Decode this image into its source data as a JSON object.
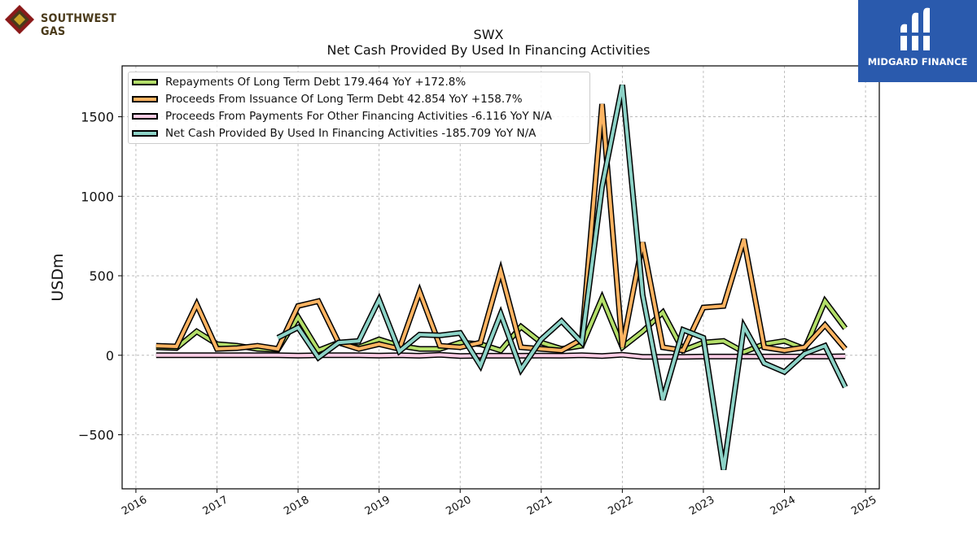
{
  "brand": {
    "left_name": "SOUTHWEST GAS",
    "right_name": "MIDGARD FINANCE"
  },
  "chart_data": {
    "type": "line",
    "title": "SWX",
    "subtitle": "Net Cash Provided By Used In Financing Activities",
    "xlabel": "",
    "ylabel": "USDm",
    "xlim": [
      2015.83,
      2025.17
    ],
    "ylim": [
      -840,
      1820
    ],
    "x_ticks": [
      2016,
      2017,
      2018,
      2019,
      2020,
      2021,
      2022,
      2023,
      2024,
      2025
    ],
    "x_tick_labels": [
      "2016",
      "2017",
      "2018",
      "2019",
      "2020",
      "2021",
      "2022",
      "2023",
      "2024",
      "2025"
    ],
    "y_ticks": [
      -500,
      0,
      500,
      1000,
      1500
    ],
    "y_tick_labels": [
      "−500",
      "0",
      "500",
      "1000",
      "1500"
    ],
    "grid": true,
    "legend_position": "top-left",
    "colors": {
      "repayments": "#b3de69",
      "proceeds_issuance": "#fdb462",
      "proceeds_other": "#fccde5",
      "net_cash": "#8dd3c7",
      "outline": "#000000",
      "grid": "#b0b0b0"
    },
    "series": [
      {
        "name": "Repayments Of Long Term Debt",
        "legend_label": "Repayments Of Long Term Debt  179.464 YoY +172.8%",
        "color_key": "repayments",
        "points": [
          [
            2016.25,
            50
          ],
          [
            2016.5,
            45
          ],
          [
            2016.75,
            150
          ],
          [
            2017.0,
            70
          ],
          [
            2017.25,
            60
          ],
          [
            2017.5,
            40
          ],
          [
            2017.75,
            35
          ],
          [
            2018.0,
            240
          ],
          [
            2018.25,
            30
          ],
          [
            2018.5,
            80
          ],
          [
            2018.75,
            50
          ],
          [
            2019.0,
            100
          ],
          [
            2019.25,
            60
          ],
          [
            2019.5,
            40
          ],
          [
            2019.75,
            40
          ],
          [
            2020.0,
            80
          ],
          [
            2020.25,
            70
          ],
          [
            2020.5,
            30
          ],
          [
            2020.75,
            180
          ],
          [
            2021.0,
            80
          ],
          [
            2021.25,
            40
          ],
          [
            2021.5,
            60
          ],
          [
            2021.75,
            360
          ],
          [
            2022.0,
            50
          ],
          [
            2022.25,
            150
          ],
          [
            2022.5,
            270
          ],
          [
            2022.75,
            30
          ],
          [
            2023.0,
            80
          ],
          [
            2023.25,
            90
          ],
          [
            2023.5,
            20
          ],
          [
            2023.75,
            70
          ],
          [
            2024.0,
            90
          ],
          [
            2024.25,
            40
          ],
          [
            2024.5,
            340
          ],
          [
            2024.75,
            170
          ]
        ]
      },
      {
        "name": "Proceeds From Issuance Of Long Term Debt",
        "legend_label": "Proceeds From Issuance Of Long Term Debt  42.854 YoY +158.7%",
        "color_key": "proceeds_issuance",
        "points": [
          [
            2016.25,
            60
          ],
          [
            2016.5,
            55
          ],
          [
            2016.75,
            320
          ],
          [
            2017.0,
            40
          ],
          [
            2017.25,
            45
          ],
          [
            2017.5,
            60
          ],
          [
            2017.75,
            40
          ],
          [
            2018.0,
            310
          ],
          [
            2018.25,
            340
          ],
          [
            2018.5,
            80
          ],
          [
            2018.75,
            40
          ],
          [
            2019.0,
            70
          ],
          [
            2019.25,
            40
          ],
          [
            2019.5,
            400
          ],
          [
            2019.75,
            60
          ],
          [
            2020.0,
            50
          ],
          [
            2020.25,
            80
          ],
          [
            2020.5,
            530
          ],
          [
            2020.75,
            50
          ],
          [
            2021.0,
            40
          ],
          [
            2021.25,
            30
          ],
          [
            2021.5,
            100
          ],
          [
            2021.75,
            1580
          ],
          [
            2022.0,
            50
          ],
          [
            2022.25,
            710
          ],
          [
            2022.5,
            50
          ],
          [
            2022.75,
            30
          ],
          [
            2023.0,
            300
          ],
          [
            2023.25,
            310
          ],
          [
            2023.5,
            730
          ],
          [
            2023.75,
            50
          ],
          [
            2024.0,
            30
          ],
          [
            2024.25,
            50
          ],
          [
            2024.5,
            190
          ],
          [
            2024.75,
            40
          ]
        ]
      },
      {
        "name": "Proceeds From Payments For Other Financing Activities",
        "legend_label": "Proceeds From Payments For Other Financing Activities  -6.116 YoY N/A",
        "color_key": "proceeds_other",
        "points": [
          [
            2016.25,
            0
          ],
          [
            2016.5,
            0
          ],
          [
            2016.75,
            0
          ],
          [
            2017.0,
            0
          ],
          [
            2017.25,
            0
          ],
          [
            2017.5,
            0
          ],
          [
            2017.75,
            0
          ],
          [
            2018.0,
            -2
          ],
          [
            2018.25,
            0
          ],
          [
            2018.5,
            0
          ],
          [
            2018.75,
            0
          ],
          [
            2019.0,
            -2
          ],
          [
            2019.25,
            0
          ],
          [
            2019.5,
            -3
          ],
          [
            2019.75,
            3
          ],
          [
            2020.0,
            -5
          ],
          [
            2020.25,
            -3
          ],
          [
            2020.5,
            -3
          ],
          [
            2020.75,
            -3
          ],
          [
            2021.0,
            -2
          ],
          [
            2021.25,
            -3
          ],
          [
            2021.5,
            0
          ],
          [
            2021.75,
            -5
          ],
          [
            2022.0,
            3
          ],
          [
            2022.25,
            -10
          ],
          [
            2022.5,
            -10
          ],
          [
            2022.75,
            -10
          ],
          [
            2023.0,
            -8
          ],
          [
            2023.25,
            -8
          ],
          [
            2023.5,
            -8
          ],
          [
            2023.75,
            -8
          ],
          [
            2024.0,
            -8
          ],
          [
            2024.25,
            -8
          ],
          [
            2024.5,
            -8
          ],
          [
            2024.75,
            -6
          ]
        ]
      },
      {
        "name": "Net Cash Provided By Used In Financing Activities",
        "legend_label": "Net Cash Provided By Used In Financing Activities  -185.709 YoY N/A",
        "color_key": "net_cash",
        "points": [
          [
            2017.75,
            110
          ],
          [
            2018.0,
            175
          ],
          [
            2018.25,
            -15
          ],
          [
            2018.5,
            80
          ],
          [
            2018.75,
            90
          ],
          [
            2019.0,
            350
          ],
          [
            2019.25,
            25
          ],
          [
            2019.5,
            130
          ],
          [
            2019.75,
            125
          ],
          [
            2020.0,
            140
          ],
          [
            2020.25,
            -65
          ],
          [
            2020.5,
            260
          ],
          [
            2020.75,
            -90
          ],
          [
            2021.0,
            100
          ],
          [
            2021.25,
            215
          ],
          [
            2021.5,
            80
          ],
          [
            2021.75,
            1060
          ],
          [
            2022.0,
            1700
          ],
          [
            2022.25,
            380
          ],
          [
            2022.5,
            -280
          ],
          [
            2022.75,
            160
          ],
          [
            2023.0,
            110
          ],
          [
            2023.25,
            -720
          ],
          [
            2023.5,
            180
          ],
          [
            2023.75,
            -50
          ],
          [
            2024.0,
            -105
          ],
          [
            2024.25,
            10
          ],
          [
            2024.5,
            60
          ],
          [
            2024.75,
            -200
          ]
        ]
      }
    ]
  }
}
